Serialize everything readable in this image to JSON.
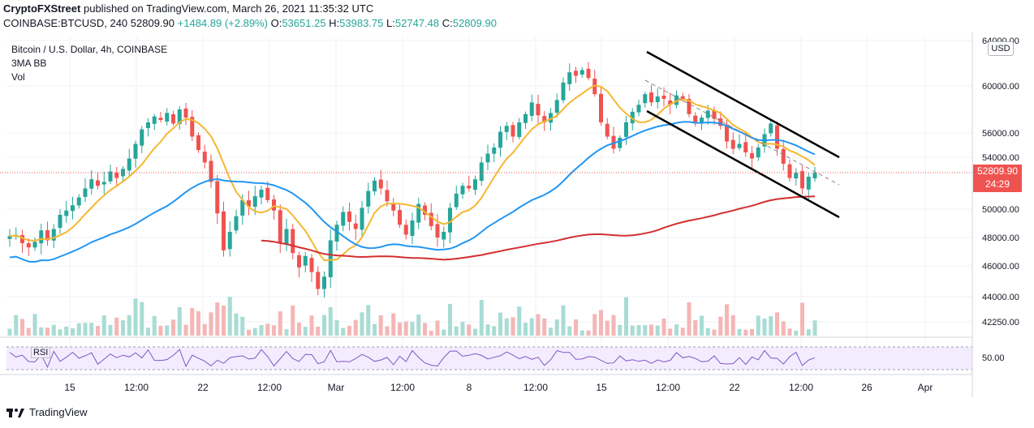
{
  "header": {
    "publisher": "CryptoFXStreet",
    "published_text": "published on TradingView.com, March 26, 2021 11:35:32 UTC",
    "symbol": "COINBASE:BTCUSD, 240",
    "last": "52809.90",
    "change": "+1484.89 (+2.89%)",
    "o_label": "O:",
    "o": "53651.25",
    "h_label": "H:",
    "h": "53983.75",
    "l_label": "L:",
    "l": "52747.48",
    "c_label": "C:",
    "c": "52809.90"
  },
  "legend": {
    "title": "Bitcoin / U.S. Dollar, 4h, COINBASE",
    "indicator": "3MA BB",
    "volume": "Vol"
  },
  "price_badge": {
    "price": "52809.90",
    "countdown": "24:29"
  },
  "currency": "USD",
  "rsi_label": "RSI",
  "footer": {
    "brand": "TradingView"
  },
  "colors": {
    "up": "#26a69a",
    "down": "#ef5350",
    "ma_fast": "#f5b731",
    "ma_mid": "#2196f3",
    "ma_slow": "#d32f2f",
    "rsi": "#7e57c2",
    "rsi_bg": "#f3ecff",
    "channel": "#000000"
  },
  "chart_data": {
    "type": "candlestick",
    "y_ticks": [
      "64000.00",
      "60000.00",
      "56000.00",
      "54000.00",
      "50000.00",
      "48000.00",
      "46000.00",
      "44000.00",
      "42250.00"
    ],
    "y_tick_values": [
      64000,
      60000,
      56000,
      54000,
      50000,
      48000,
      46000,
      44000,
      42250
    ],
    "x_ticks": [
      "15",
      "12:00",
      "22",
      "12:00",
      "Mar",
      "12:00",
      "8",
      "12:00",
      "15",
      "12:00",
      "22",
      "12:00",
      "26",
      "Apr"
    ],
    "rsi_tick": "50.00",
    "last_price": 52809.9,
    "candles_close": [
      48100,
      48200,
      47600,
      47300,
      47700,
      48500,
      47800,
      48600,
      49600,
      49900,
      50300,
      50900,
      51600,
      52300,
      51800,
      52100,
      52900,
      52400,
      53100,
      53900,
      55100,
      56300,
      56900,
      57400,
      57100,
      57700,
      56800,
      58000,
      57300,
      55700,
      54600,
      53600,
      52100,
      49700,
      47100,
      48400,
      49500,
      50700,
      50200,
      51000,
      51500,
      50700,
      49900,
      47600,
      48600,
      46900,
      45900,
      46700,
      45600,
      44500,
      45300,
      47800,
      48900,
      49800,
      49100,
      48600,
      50100,
      51400,
      52200,
      51600,
      50600,
      49900,
      48900,
      48200,
      49200,
      50400,
      49600,
      48800,
      48000,
      48400,
      50100,
      51200,
      51800,
      51600,
      52300,
      53600,
      54300,
      54800,
      56100,
      56600,
      55700,
      56900,
      57600,
      58600,
      57500,
      56900,
      57700,
      58800,
      60300,
      61200,
      60900,
      61400,
      60700,
      59300,
      56900,
      55700,
      54700,
      55600,
      56900,
      57800,
      58400,
      59300,
      58600,
      59100,
      58900,
      58400,
      59200,
      58900,
      57600,
      56800,
      57300,
      57900,
      57200,
      56600,
      55300,
      54700,
      55100,
      54400,
      53900,
      54800,
      55900,
      56800,
      54700,
      53500,
      52400,
      52800,
      51600,
      52500,
      52809.9
    ]
  }
}
